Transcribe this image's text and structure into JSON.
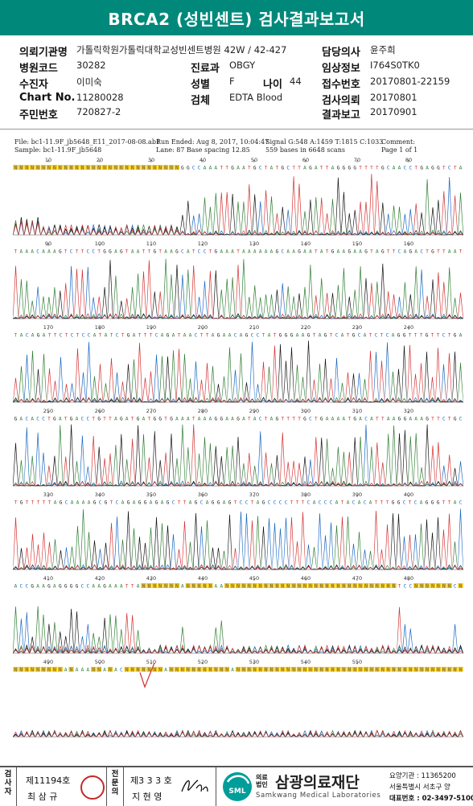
{
  "title": "BRCA2 (성빈센트) 검사결과보고서",
  "info": {
    "rows": [
      [
        {
          "label": "의뢰기관명",
          "value": "가톨릭학원가톨릭대학교성빈센트병원 42W / 42-427"
        },
        {
          "label": "담당의사",
          "value": "윤주희"
        }
      ],
      [
        {
          "label": "병원코드",
          "value": "30282"
        },
        {
          "label": "진료과",
          "value": "OBGY"
        },
        {
          "label": "임상정보",
          "value": "I764S0TK0"
        }
      ],
      [
        {
          "label": "수진자",
          "value": "이미숙"
        },
        {
          "label": "성별",
          "value": "F"
        },
        {
          "label": "나이",
          "value": "44"
        },
        {
          "label": "접수번호",
          "value": "20170801-22159"
        }
      ],
      [
        {
          "label": "Chart No.",
          "value": "11280028"
        },
        {
          "label": "검체",
          "value": "EDTA Blood"
        },
        {
          "label": "검사의뢰",
          "value": "20170801"
        }
      ],
      [
        {
          "label": "주민번호",
          "value": "720827-2"
        },
        {
          "label": "결과보고",
          "value": "20170901"
        }
      ]
    ]
  },
  "trace_header": {
    "file": "File: bc1-11.9F_jb5648_E11_2017-08-08.ab1",
    "sample": "Sample: bc1-11.9F_jb5648",
    "run": "Run Ended: Aug 8, 2017, 10:04:47",
    "lane": "Lane: 87   Base spacing 12.85",
    "signal": "Signal G:548 A:1459 T:1815 C:1033",
    "bases": "559 bases in 6648 scans",
    "comment": "Comment:",
    "page": "Page 1 of 1"
  },
  "trace_panels": [
    {
      "ticks": [
        "10",
        "20",
        "30",
        "40",
        "50",
        "60",
        "70",
        "80"
      ],
      "seq": "NNNNNNNNNNNNNNNNNNNNNNNNNNNNNNGGCCAAATTGAATGCTATGCTTAGATTAGGGGTTTTGCAACCTGAGGTCTA"
    },
    {
      "ticks": [
        "90",
        "100",
        "110",
        "120",
        "130",
        "140",
        "150",
        "160"
      ],
      "seq": "TAAACAAAGTCTTCCTGGAGTAATTGTAAGCATCCTGAAATAAAAAAGCAAGAATATGAAGAAGTAGTTCAGACTGTTAAT"
    },
    {
      "ticks": [
        "170",
        "180",
        "190",
        "200",
        "210",
        "220",
        "230",
        "240"
      ],
      "seq": "TACAGATTCTCTCCATATCTGATTTCAGATAACTTAGAACAGCCTATGGGAAGTAGTCATGCATCTCAGGTTTGTTCTGA"
    },
    {
      "ticks": [
        "250",
        "260",
        "270",
        "280",
        "290",
        "300",
        "310",
        "320"
      ],
      "seq": "GACACCTGATGACCTGTTAGATGATGGTGAAATAAAGGAAGATACTAGTTTTGCTGAAAATGACATTAAGGAAAGTTCTGC"
    },
    {
      "ticks": [
        "330",
        "340",
        "350",
        "360",
        "370",
        "380",
        "390",
        "400"
      ],
      "seq": "TGTTTTTAGCAAAAGCGTCAGAGGAGAGCTTAGCAGGAGTCCTAGCCCCTTTCACCCATACACATTTGGCTCAGGGTTAC"
    },
    {
      "ticks": [
        "410",
        "420",
        "430",
        "440",
        "450",
        "460",
        "470",
        "480"
      ],
      "seq": "ACCGAAGAGGGGCCAAGAAATTANNNNNNNANNNNNAANNNNNNNNNNNNNNNNNNNNNNNNNNNNNNNTCCNNNNNNNCN"
    },
    {
      "ticks": [
        "490",
        "500",
        "510",
        "520",
        "530",
        "540",
        "550"
      ],
      "seq": "NNNNNNNNNANAAANNANACNNNNNNNANNNNNNNNNNNANNNNNNNNNNNNNNNNNNNNNNNNNNNNNNNNNNNNNNNNN"
    }
  ],
  "footer": {
    "reviewer_label": "검사자",
    "reviewer_no": "제11194호",
    "reviewer_name": "최 삼 규",
    "specialist_label": "전문의",
    "specialist_no": "제3 3 3 호",
    "specialist_name": "지 현 영",
    "org_prefix": "의료법인",
    "org_name": "삼광의료재단",
    "org_en": "Samkwang Medical Laboratories",
    "logo_text": "SML",
    "agency": "요양기관 : 11365200",
    "address": "서울특별시 서초구 양",
    "phone": "대표번호 : 02-3497-5100"
  },
  "colors": {
    "title_bg": "#00897b",
    "A": "#2e7d32",
    "C": "#1565c0",
    "G": "#111111",
    "T": "#d32f2f",
    "N": "#f2c200"
  }
}
